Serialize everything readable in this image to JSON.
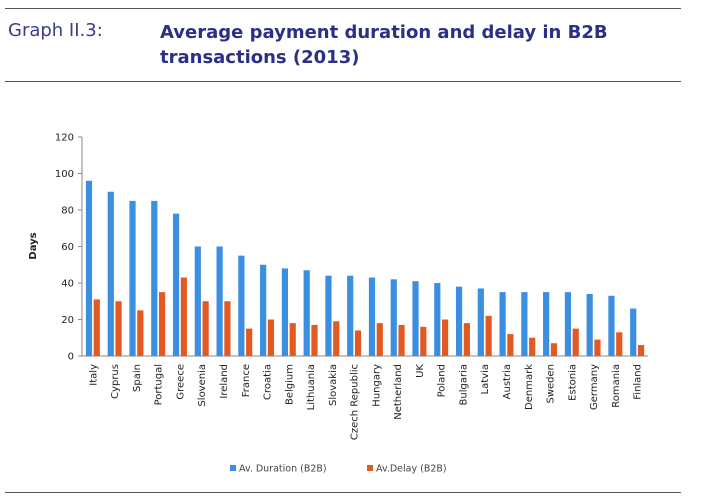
{
  "header": {
    "label": "Graph II.3:",
    "title": "Average payment duration and delay in B2B transactions (2013)"
  },
  "colors": {
    "duration": "#3b8fe0",
    "delay": "#e25a22",
    "header_text": "#2b2f86"
  },
  "chart_data": {
    "type": "bar",
    "title": "",
    "xlabel": "",
    "ylabel": "Days",
    "ylim": [
      0,
      120
    ],
    "yticks": [
      0,
      20,
      40,
      60,
      80,
      100,
      120
    ],
    "grid": false,
    "legend_position": "bottom",
    "categories": [
      "Italy",
      "Cyprus",
      "Spain",
      "Portugal",
      "Greece",
      "Slovenia",
      "Ireland",
      "France",
      "Croatia",
      "Belgium",
      "Lithuania",
      "Slovakia",
      "Czech Republic",
      "Hungary",
      "Netherland",
      "UK",
      "Poland",
      "Bulgaria",
      "Latvia",
      "Austria",
      "Denmark",
      "Sweden",
      "Estonia",
      "Germany",
      "Romania",
      "Finland"
    ],
    "series": [
      {
        "name": "Av. Duration (B2B)",
        "values": [
          96,
          90,
          85,
          85,
          78,
          60,
          60,
          55,
          50,
          48,
          47,
          44,
          44,
          43,
          42,
          41,
          40,
          38,
          37,
          35,
          35,
          35,
          35,
          34,
          33,
          26
        ]
      },
      {
        "name": "Av.Delay (B2B)",
        "values": [
          31,
          30,
          25,
          35,
          43,
          30,
          30,
          15,
          20,
          18,
          17,
          19,
          14,
          18,
          17,
          16,
          20,
          18,
          22,
          12,
          10,
          7,
          15,
          9,
          13,
          6
        ]
      }
    ]
  }
}
